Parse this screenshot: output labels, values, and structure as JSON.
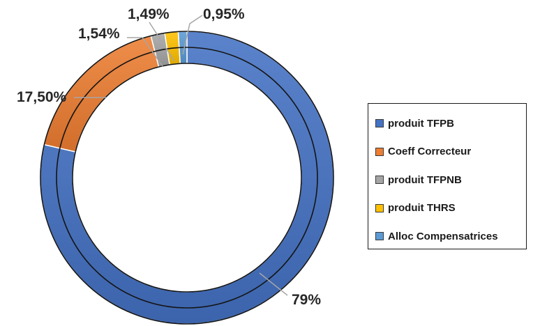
{
  "chart_data": {
    "type": "pie",
    "variant": "donut",
    "categories": [
      "produit TFPB",
      "Coeff Correcteur",
      "produit TFPNB",
      "produit THRS",
      "Alloc Compensatrices"
    ],
    "values": [
      79,
      17.5,
      1.54,
      1.49,
      0.95
    ],
    "data_labels": [
      "79%",
      "17,50%",
      "1,54%",
      "1,49%",
      "0,95%"
    ],
    "colors": [
      "#4472C4",
      "#ED7D31",
      "#A5A5A5",
      "#FFC000",
      "#5B9BD5"
    ],
    "legend": {
      "position": "right",
      "entries": [
        "produit TFPB",
        "Coeff Correcteur",
        "produit TFPNB",
        "produit THRS",
        "Alloc Compensatrices"
      ]
    },
    "start_angle": "top",
    "direction": "clockwise"
  }
}
